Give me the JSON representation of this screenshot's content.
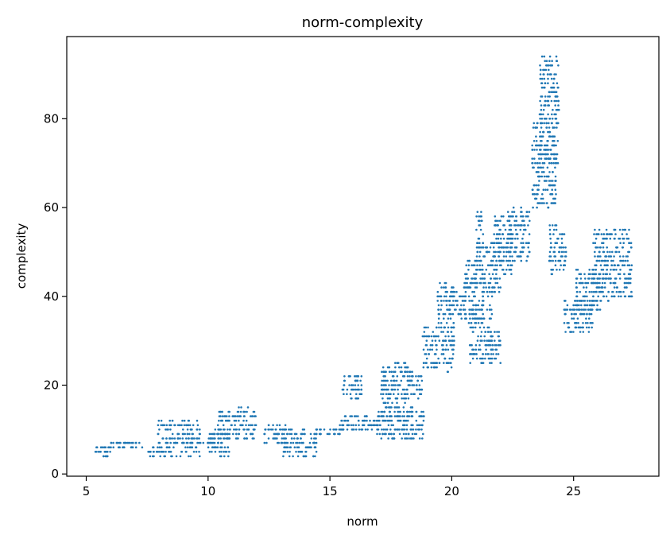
{
  "chart_data": {
    "type": "scatter",
    "title": "norm-complexity",
    "xlabel": "norm",
    "ylabel": "complexity",
    "xlim": [
      4.2,
      28.5
    ],
    "ylim": [
      -0.5,
      98.5
    ],
    "xticks": [
      5,
      10,
      15,
      20,
      25
    ],
    "yticks": [
      0,
      20,
      40,
      60,
      80
    ],
    "grid": false,
    "marker_color": "#1f77b4",
    "clusters": [
      {
        "x": [
          5.3,
          6.0
        ],
        "y": [
          4,
          6
        ]
      },
      {
        "x": [
          6.0,
          7.3
        ],
        "y": [
          6,
          7
        ]
      },
      {
        "x": [
          7.5,
          7.9
        ],
        "y": [
          4,
          6
        ]
      },
      {
        "x": [
          7.9,
          9.7
        ],
        "y": [
          4,
          12
        ]
      },
      {
        "x": [
          9.8,
          10.3
        ],
        "y": [
          7,
          8
        ]
      },
      {
        "x": [
          10.0,
          10.9
        ],
        "y": [
          4,
          10
        ]
      },
      {
        "x": [
          10.4,
          12.0
        ],
        "y": [
          8,
          15
        ]
      },
      {
        "x": [
          12.3,
          13.2
        ],
        "y": [
          7,
          11
        ]
      },
      {
        "x": [
          13.0,
          14.5
        ],
        "y": [
          4,
          10
        ]
      },
      {
        "x": [
          14.4,
          15.6
        ],
        "y": [
          9,
          10
        ]
      },
      {
        "x": [
          15.4,
          16.2
        ],
        "y": [
          10,
          13
        ]
      },
      {
        "x": [
          15.5,
          16.3
        ],
        "y": [
          17,
          23
        ]
      },
      {
        "x": [
          16.2,
          17.0
        ],
        "y": [
          10,
          13
        ]
      },
      {
        "x": [
          16.9,
          18.9
        ],
        "y": [
          8,
          14
        ]
      },
      {
        "x": [
          17.1,
          18.4
        ],
        "y": [
          12,
          25
        ]
      },
      {
        "x": [
          18.3,
          18.8
        ],
        "y": [
          17,
          22
        ]
      },
      {
        "x": [
          18.8,
          19.4
        ],
        "y": [
          24,
          33
        ]
      },
      {
        "x": [
          19.4,
          20.1
        ],
        "y": [
          23,
          43
        ]
      },
      {
        "x": [
          19.9,
          20.6
        ],
        "y": [
          35,
          41
        ]
      },
      {
        "x": [
          20.5,
          21.3
        ],
        "y": [
          38,
          48
        ]
      },
      {
        "x": [
          20.7,
          21.7
        ],
        "y": [
          25,
          38
        ]
      },
      {
        "x": [
          21.0,
          21.3
        ],
        "y": [
          48,
          59
        ]
      },
      {
        "x": [
          21.2,
          22.0
        ],
        "y": [
          40,
          52
        ]
      },
      {
        "x": [
          21.5,
          22.0
        ],
        "y": [
          25,
          32
        ]
      },
      {
        "x": [
          21.7,
          22.5
        ],
        "y": [
          45,
          58
        ]
      },
      {
        "x": [
          22.3,
          23.2
        ],
        "y": [
          48,
          60
        ]
      },
      {
        "x": [
          23.3,
          24.3
        ],
        "y": [
          60,
          80
        ]
      },
      {
        "x": [
          23.6,
          24.4
        ],
        "y": [
          70,
          94
        ]
      },
      {
        "x": [
          24.0,
          24.3
        ],
        "y": [
          45,
          56
        ]
      },
      {
        "x": [
          24.3,
          24.7
        ],
        "y": [
          46,
          54
        ]
      },
      {
        "x": [
          24.6,
          25.8
        ],
        "y": [
          32,
          39
        ]
      },
      {
        "x": [
          25.1,
          26.2
        ],
        "y": [
          37,
          46
        ]
      },
      {
        "x": [
          25.8,
          27.4
        ],
        "y": [
          39,
          55
        ]
      }
    ]
  }
}
